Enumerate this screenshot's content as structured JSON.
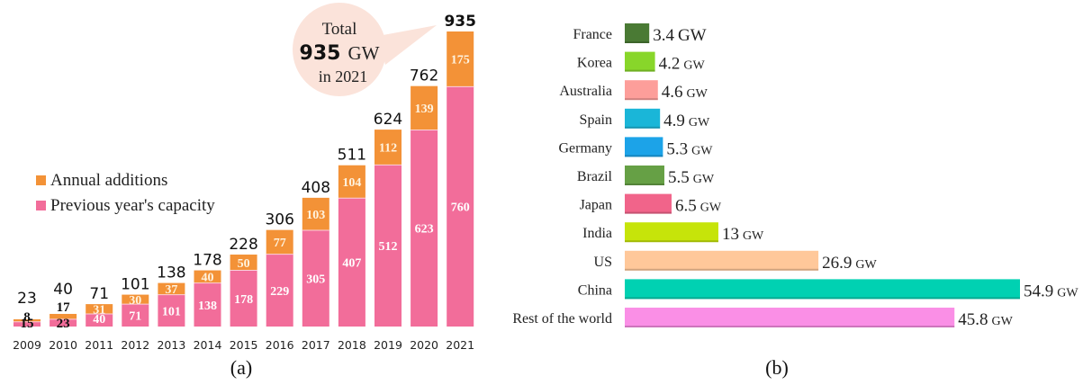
{
  "chart_data": [
    {
      "id": "a",
      "type": "bar",
      "stacked": true,
      "title": "",
      "caption": "(a)",
      "xlabel": "",
      "ylabel": "",
      "categories": [
        "2009",
        "2010",
        "2011",
        "2012",
        "2013",
        "2014",
        "2015",
        "2016",
        "2017",
        "2018",
        "2019",
        "2020",
        "2021"
      ],
      "series": [
        {
          "name": "Previous year's capacity",
          "color": "#f26d9a",
          "values": [
            15,
            23,
            40,
            71,
            101,
            138,
            178,
            229,
            305,
            407,
            512,
            623,
            760
          ]
        },
        {
          "name": "Annual additions",
          "color": "#f39237",
          "values": [
            8,
            17,
            31,
            30,
            37,
            40,
            50,
            77,
            103,
            104,
            112,
            139,
            175
          ]
        }
      ],
      "totals": [
        23,
        40,
        71,
        101,
        138,
        178,
        228,
        306,
        408,
        511,
        624,
        762,
        935
      ],
      "ylim": [
        0,
        935
      ],
      "grid": false,
      "legend": {
        "position": "left-middle",
        "entries": [
          "Annual additions",
          "Previous year's capacity"
        ]
      },
      "annotation": {
        "line1": "Total",
        "value": "935",
        "unit": "GW",
        "line3": "in 2021",
        "color": "#fbe3da"
      }
    },
    {
      "id": "b",
      "type": "bar",
      "orientation": "horizontal",
      "title": "",
      "caption": "(b)",
      "unit": "GW",
      "categories": [
        "France",
        "Korea",
        "Australia",
        "Spain",
        "Germany",
        "Brazil",
        "Japan",
        "India",
        "US",
        "China",
        "Rest of the world"
      ],
      "values": [
        3.4,
        4.2,
        4.6,
        4.9,
        5.3,
        5.5,
        6.5,
        13,
        26.9,
        54.9,
        45.8
      ],
      "labels": [
        "3.4",
        "4.2",
        "4.6",
        "4.9",
        "5.3",
        "5.5",
        "6.5",
        "13",
        "26.9",
        "54.9",
        "45.8"
      ],
      "colors": [
        "#4a7a34",
        "#88d62a",
        "#fd9e9a",
        "#1ab6d8",
        "#1ca3e8",
        "#66a045",
        "#f1648a",
        "#c6e40a",
        "#ffc89a",
        "#00d1b2",
        "#fa8fe6"
      ],
      "xlim": [
        0,
        54.9
      ],
      "grid": false
    }
  ]
}
